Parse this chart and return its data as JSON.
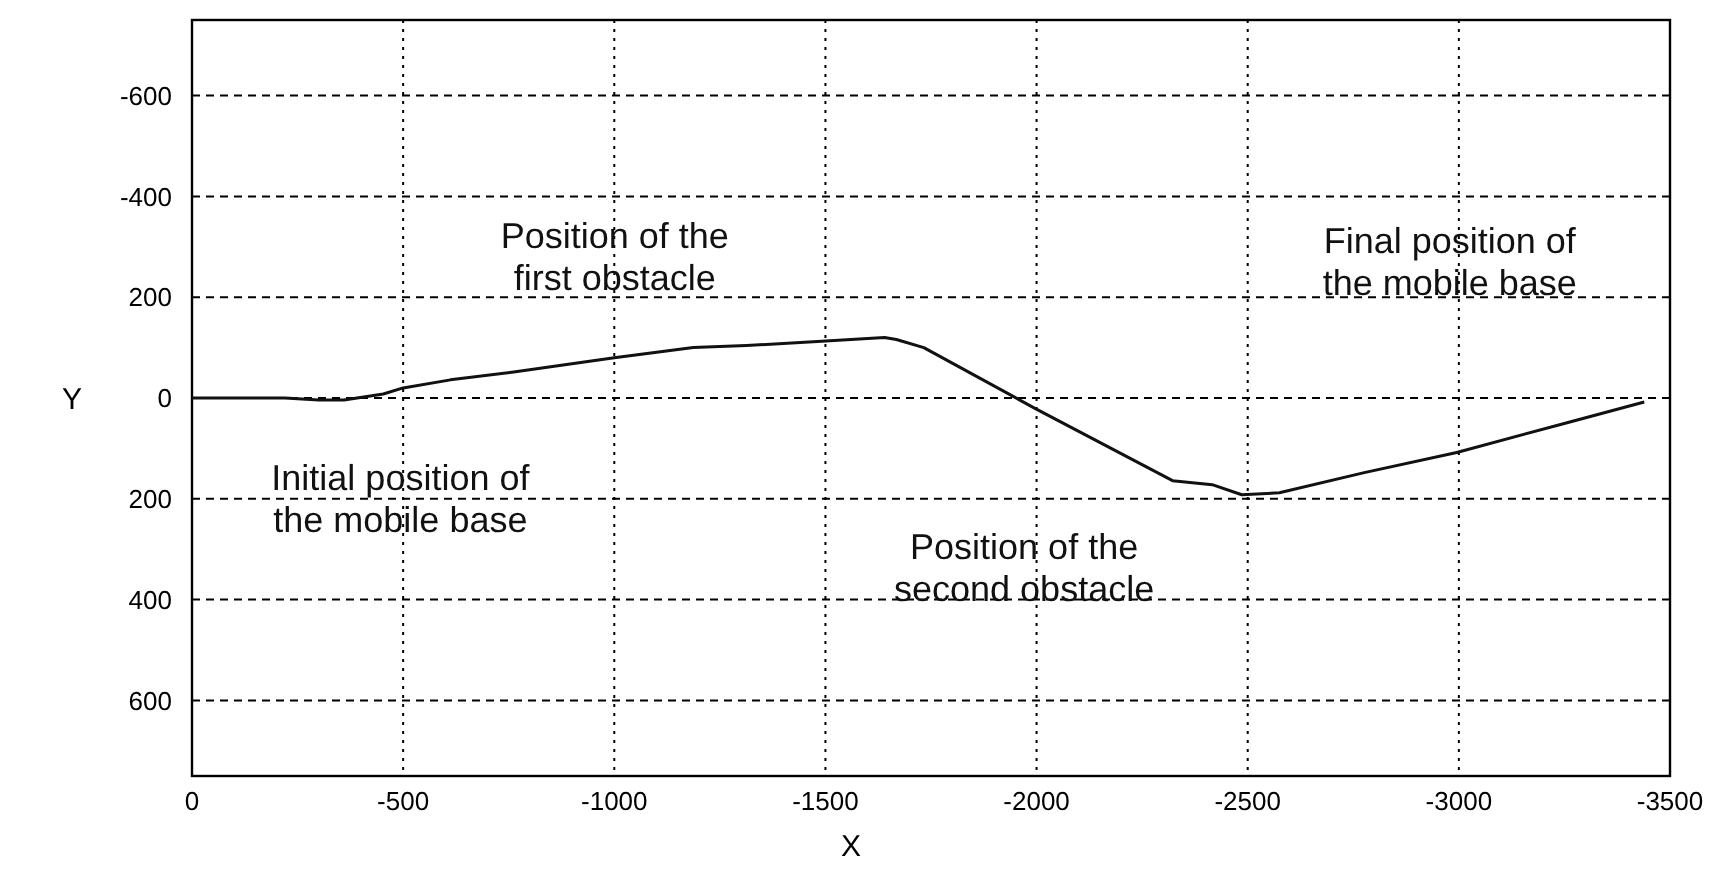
{
  "chart_data": {
    "type": "line",
    "xlabel": "X",
    "ylabel": "Y",
    "xlim": [
      0,
      -3500
    ],
    "xticks": [
      0,
      -500,
      -1000,
      -1500,
      -2000,
      -2500,
      -3000,
      -3500
    ],
    "ylim": [
      750,
      -750
    ],
    "yticks": [
      -600,
      -400,
      {
        "value": -200,
        "label": "200"
      },
      0,
      200,
      400,
      600
    ],
    "grid": true,
    "line_style": "solid",
    "marker": "none",
    "series": [
      {
        "color": "#111111",
        "x": [
          0,
          -220,
          -300,
          -360,
          -453,
          -500,
          -612,
          -766,
          -1000,
          -1187,
          -1313,
          -1481,
          -1640,
          -1668,
          -1733,
          -1995,
          -2322,
          -2416,
          -2486,
          -2575,
          -2776,
          -2995,
          -3243,
          -3439
        ],
        "values": [
          0,
          0,
          4,
          4,
          -8,
          -20,
          -36,
          -52,
          -80,
          -100,
          -104,
          -112,
          -120,
          -116,
          -100,
          20,
          164,
          172,
          192,
          188,
          148,
          108,
          52,
          8
        ]
      }
    ],
    "annotations": [
      "Position of the\nfirst obstacle",
      "Initial position of\nthe mobile base",
      "Position of the\nsecond obstacle",
      "Final position of\nthe mobile base"
    ]
  }
}
